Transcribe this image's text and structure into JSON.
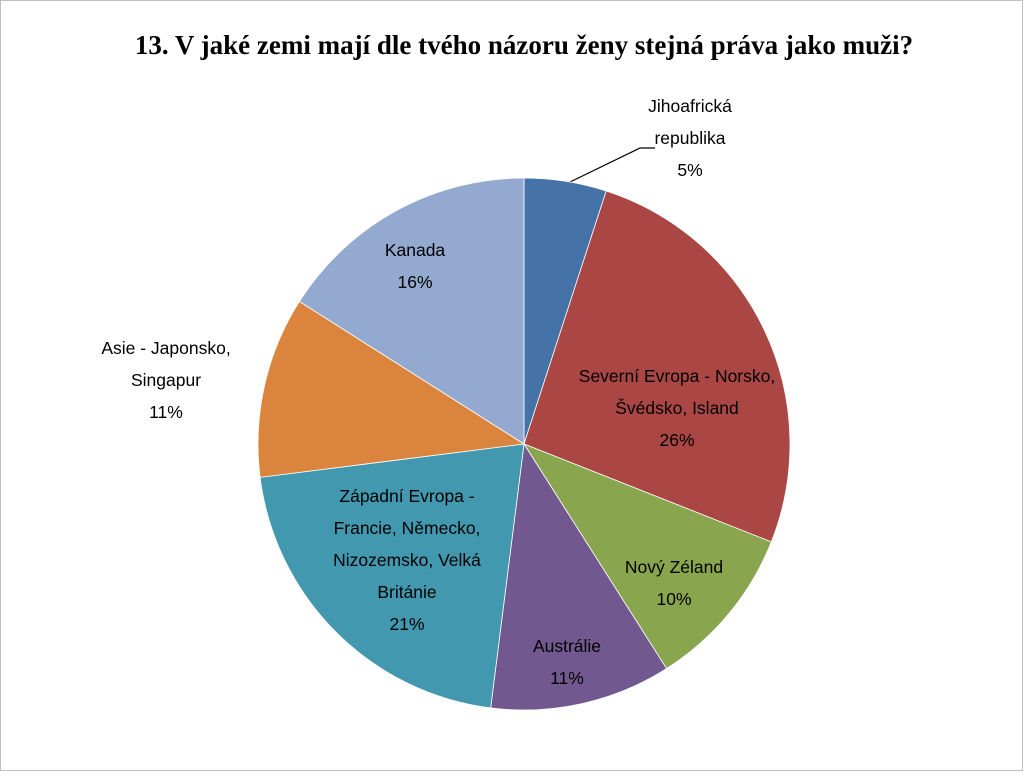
{
  "chart_data": {
    "type": "pie",
    "title": "13. V jaké zemi mají dle tvého názoru ženy stejná práva jako muži?",
    "categories": [
      "Jihoafrická republika",
      "Severní Evropa - Norsko, Švédsko, Island",
      "Nový Zéland",
      "Austrálie",
      "Západní Evropa - Francie, Německo, Nizozemsko, Velká Británie",
      "Asie - Japonsko, Singapur",
      "Kanada"
    ],
    "values": [
      5,
      26,
      10,
      11,
      21,
      11,
      16
    ],
    "value_labels": [
      "5%",
      "26%",
      "10%",
      "11%",
      "21%",
      "11%",
      "16%"
    ],
    "colors": [
      "#4572a7",
      "#aa4643",
      "#89a54e",
      "#71588f",
      "#4198af",
      "#db843d",
      "#93a9cf"
    ]
  }
}
